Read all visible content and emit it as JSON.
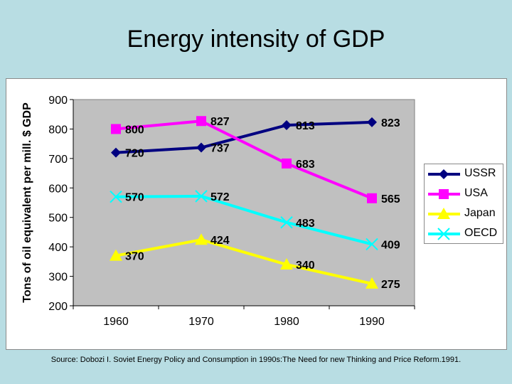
{
  "slide": {
    "title": "Energy intensity of GDP",
    "source": "Source: Dobozi I. Soviet Energy Policy and Consumption in 1990s:The Need for new Thinking and Price Reform.1991."
  },
  "chart_data": {
    "type": "line",
    "title": "Energy intensity of GDP",
    "xlabel": "",
    "ylabel": "Tons of oil equivalent per mill. $ GDP",
    "categories": [
      "1960",
      "1970",
      "1980",
      "1990"
    ],
    "ylim": [
      200,
      900
    ],
    "yticks": [
      200,
      300,
      400,
      500,
      600,
      700,
      800,
      900
    ],
    "grid": false,
    "legend_position": "right",
    "series": [
      {
        "name": "USSR",
        "values": [
          720,
          737,
          813,
          823
        ],
        "color": "#000080",
        "marker": "diamond"
      },
      {
        "name": "USA",
        "values": [
          800,
          827,
          683,
          565
        ],
        "color": "#ff00ff",
        "marker": "square"
      },
      {
        "name": "Japan",
        "values": [
          370,
          424,
          340,
          275
        ],
        "color": "#ffff00",
        "marker": "triangle"
      },
      {
        "name": "OECD",
        "values": [
          570,
          572,
          483,
          409
        ],
        "color": "#00ffff",
        "marker": "x"
      }
    ]
  }
}
